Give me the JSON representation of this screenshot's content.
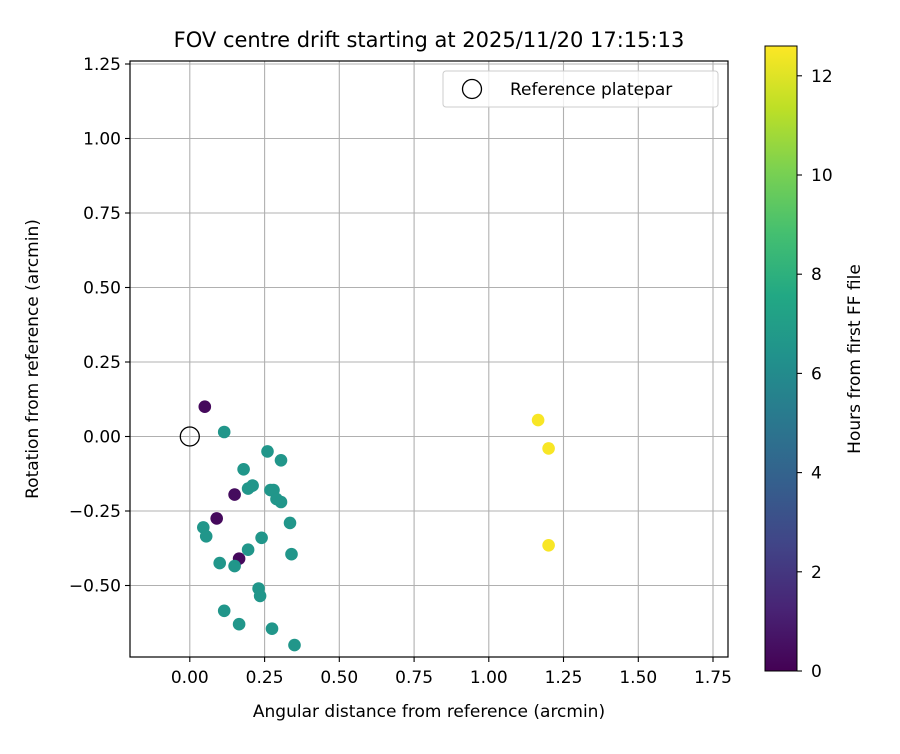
{
  "chart_data": {
    "type": "scatter",
    "title": "FOV centre drift starting at 2025/11/20 17:15:13",
    "xlabel": "Angular distance from reference (arcmin)",
    "ylabel": "Rotation from reference (arcmin)",
    "xlim": [
      -0.2,
      1.8
    ],
    "ylim": [
      -0.74,
      1.26
    ],
    "xticks": [
      0.0,
      0.25,
      0.5,
      0.75,
      1.0,
      1.25,
      1.5,
      1.75
    ],
    "xtick_labels": [
      "0.00",
      "0.25",
      "0.50",
      "0.75",
      "1.00",
      "1.25",
      "1.50",
      "1.75"
    ],
    "yticks": [
      -0.5,
      -0.25,
      0.0,
      0.25,
      0.5,
      0.75,
      1.0,
      1.25
    ],
    "ytick_labels": [
      "−0.50",
      "−0.25",
      "0.00",
      "0.25",
      "0.50",
      "0.75",
      "1.00",
      "1.25"
    ],
    "grid": true,
    "legend": {
      "position": "top-right",
      "entries": [
        "Reference platepar"
      ]
    },
    "reference_point": {
      "x": 0.0,
      "y": 0.0,
      "label": "Reference platepar"
    },
    "colorbar": {
      "label": "Hours from first FF file",
      "range": [
        0,
        12.6
      ],
      "ticks": [
        0,
        2,
        4,
        6,
        8,
        10,
        12
      ],
      "tick_labels": [
        "0",
        "2",
        "4",
        "6",
        "8",
        "10",
        "12"
      ],
      "colormap": "viridis"
    },
    "points": [
      {
        "x": 0.05,
        "y": 0.1,
        "hours": 0.3
      },
      {
        "x": 0.15,
        "y": -0.195,
        "hours": 0.4
      },
      {
        "x": 0.09,
        "y": -0.275,
        "hours": 0.3
      },
      {
        "x": 0.165,
        "y": -0.41,
        "hours": 0.3
      },
      {
        "x": 0.115,
        "y": 0.015,
        "hours": 6.6
      },
      {
        "x": 0.18,
        "y": -0.11,
        "hours": 6.6
      },
      {
        "x": 0.195,
        "y": -0.175,
        "hours": 6.6
      },
      {
        "x": 0.21,
        "y": -0.165,
        "hours": 6.6
      },
      {
        "x": 0.26,
        "y": -0.05,
        "hours": 6.6
      },
      {
        "x": 0.305,
        "y": -0.08,
        "hours": 6.6
      },
      {
        "x": 0.27,
        "y": -0.18,
        "hours": 6.6
      },
      {
        "x": 0.28,
        "y": -0.18,
        "hours": 6.6
      },
      {
        "x": 0.29,
        "y": -0.21,
        "hours": 6.6
      },
      {
        "x": 0.305,
        "y": -0.22,
        "hours": 6.6
      },
      {
        "x": 0.335,
        "y": -0.29,
        "hours": 6.6
      },
      {
        "x": 0.045,
        "y": -0.305,
        "hours": 6.6
      },
      {
        "x": 0.055,
        "y": -0.335,
        "hours": 6.6
      },
      {
        "x": 0.24,
        "y": -0.34,
        "hours": 6.6
      },
      {
        "x": 0.195,
        "y": -0.38,
        "hours": 6.6
      },
      {
        "x": 0.34,
        "y": -0.395,
        "hours": 6.6
      },
      {
        "x": 0.1,
        "y": -0.425,
        "hours": 6.6
      },
      {
        "x": 0.15,
        "y": -0.435,
        "hours": 6.6
      },
      {
        "x": 0.23,
        "y": -0.51,
        "hours": 6.6
      },
      {
        "x": 0.235,
        "y": -0.535,
        "hours": 6.6
      },
      {
        "x": 0.115,
        "y": -0.585,
        "hours": 6.6
      },
      {
        "x": 0.165,
        "y": -0.63,
        "hours": 6.6
      },
      {
        "x": 0.275,
        "y": -0.645,
        "hours": 6.6
      },
      {
        "x": 0.35,
        "y": -0.7,
        "hours": 6.6
      },
      {
        "x": 1.165,
        "y": 0.055,
        "hours": 12.5
      },
      {
        "x": 1.2,
        "y": -0.04,
        "hours": 12.5
      },
      {
        "x": 1.2,
        "y": -0.365,
        "hours": 12.5
      }
    ]
  }
}
